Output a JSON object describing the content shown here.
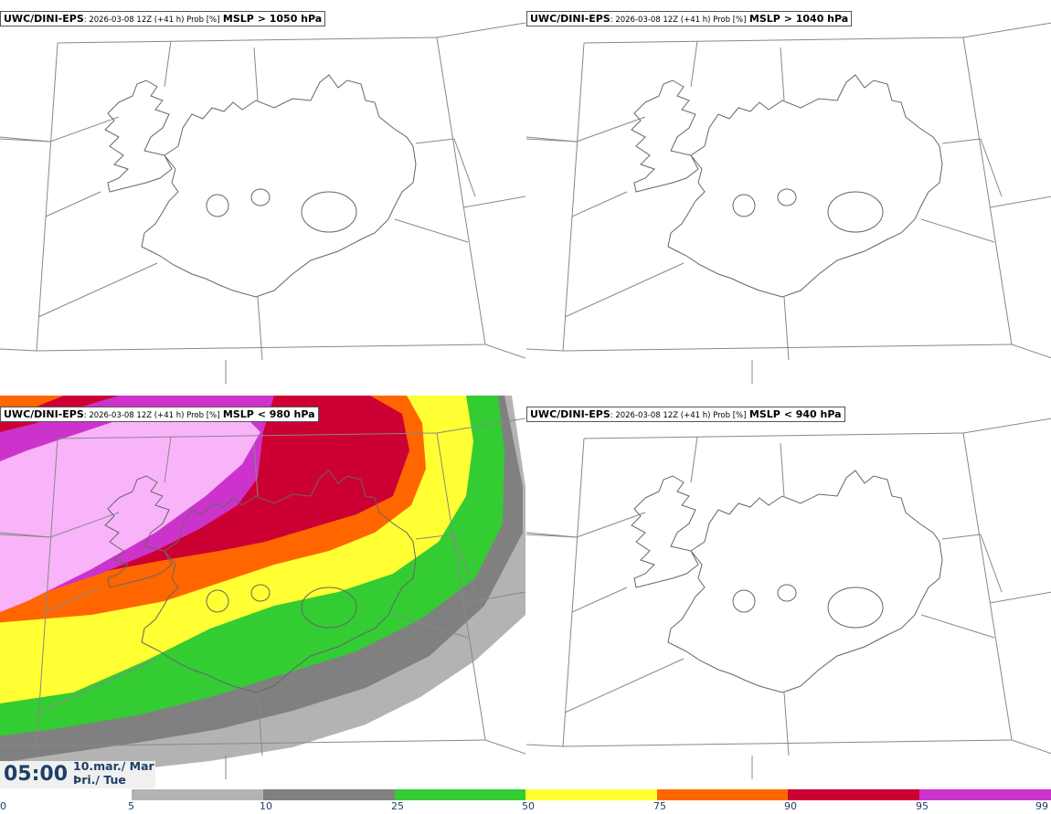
{
  "panels": [
    {
      "model": "UWC/DINI-EPS",
      "meta": ": 2026-03-08 12Z (+41 h) Prob [%]",
      "quantity": "MSLP > 1050 hPa"
    },
    {
      "model": "UWC/DINI-EPS",
      "meta": ": 2026-03-08 12Z (+41 h) Prob [%]",
      "quantity": "MSLP > 1040 hPa"
    },
    {
      "model": "UWC/DINI-EPS",
      "meta": ": 2026-03-08 12Z (+41 h) Prob [%]",
      "quantity": "MSLP < 980 hPa"
    },
    {
      "model": "UWC/DINI-EPS",
      "meta": ": 2026-03-08 12Z (+41 h) Prob [%]",
      "quantity": "MSLP < 940 hPa"
    }
  ],
  "valid_time": {
    "time": "05:00",
    "date_line1": "10.mar./ Mar",
    "date_line2": "Þri./ Tue"
  },
  "colorbar": {
    "ticks": [
      "0",
      "5",
      "10",
      "25",
      "50",
      "75",
      "90",
      "95",
      "99"
    ],
    "colors": [
      "#ffffff",
      "#b3b3b3",
      "#808080",
      "#33cc33",
      "#ffff33",
      "#ff6600",
      "#cc0033",
      "#cc33cc",
      "#f9b3f9"
    ]
  }
}
